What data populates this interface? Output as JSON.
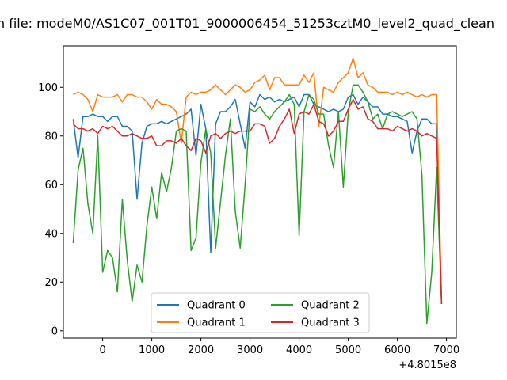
{
  "chart_data": {
    "type": "line",
    "title": "n file: modeM0/AS1C07_001T01_9000006454_51253cztM0_level2_quad_clean",
    "offset_label": "+4.8015e8",
    "xlabel": "",
    "ylabel": "",
    "xlim": [
      -800,
      7200
    ],
    "ylim": [
      -3,
      117
    ],
    "xticks": [
      0,
      1000,
      2000,
      3000,
      4000,
      5000,
      6000,
      7000
    ],
    "xtick_labels": [
      "0",
      "1000",
      "2000",
      "3000",
      "4000",
      "5000",
      "6000",
      "7000"
    ],
    "yticks": [
      0,
      20,
      40,
      60,
      80,
      100
    ],
    "ytick_labels": [
      "0",
      "20",
      "40",
      "60",
      "80",
      "100"
    ],
    "grid": false,
    "legend_position": "lower center",
    "legend_columns": 2,
    "x": [
      -600,
      -500,
      -400,
      -300,
      -200,
      -100,
      0,
      100,
      200,
      300,
      400,
      500,
      600,
      700,
      800,
      900,
      1000,
      1100,
      1200,
      1300,
      1400,
      1500,
      1600,
      1700,
      1800,
      1900,
      2000,
      2100,
      2200,
      2300,
      2400,
      2500,
      2600,
      2700,
      2800,
      2900,
      3000,
      3100,
      3200,
      3300,
      3400,
      3500,
      3600,
      3700,
      3800,
      3900,
      4000,
      4100,
      4200,
      4300,
      4400,
      4500,
      4600,
      4700,
      4800,
      4900,
      5000,
      5100,
      5200,
      5300,
      5400,
      5500,
      5600,
      5700,
      5800,
      5900,
      6000,
      6100,
      6200,
      6300,
      6400,
      6500,
      6600,
      6700,
      6800,
      6900
    ],
    "series": [
      {
        "name": "Quadrant 0",
        "color": "#1f77b4",
        "values": [
          87,
          71,
          88,
          88,
          89,
          88,
          88,
          86,
          88,
          88,
          84,
          84,
          82,
          54,
          77,
          84,
          85,
          85,
          86,
          85,
          86,
          87,
          88,
          89,
          91,
          72,
          93,
          83,
          32,
          85,
          90,
          90,
          92,
          95,
          85,
          75,
          94,
          92,
          97,
          95,
          96,
          94,
          95,
          94,
          95,
          96,
          92,
          97,
          97,
          93,
          92,
          91,
          90,
          91,
          90,
          91,
          96,
          97,
          93,
          96,
          94,
          92,
          92,
          89,
          89,
          88,
          88,
          87,
          86,
          73,
          82,
          87,
          87,
          85,
          85,
          11
        ]
      },
      {
        "name": "Quadrant 1",
        "color": "#ff7f0e",
        "values": [
          97,
          98,
          97,
          95,
          90,
          97,
          96,
          96,
          96,
          97,
          94,
          97,
          97,
          96,
          96,
          94,
          91,
          95,
          93,
          93,
          92,
          90,
          77,
          96,
          98,
          97,
          98,
          98,
          99,
          101,
          99,
          97,
          99,
          101,
          100,
          98,
          99,
          102,
          103,
          105,
          99,
          104,
          104,
          101,
          101,
          101,
          101,
          105,
          102,
          106,
          84,
          100,
          99,
          98,
          102,
          104,
          106,
          112,
          104,
          106,
          101,
          100,
          98,
          98,
          98,
          97,
          98,
          97,
          98,
          97,
          96,
          97,
          96,
          97,
          97,
          12
        ]
      },
      {
        "name": "Quadrant 2",
        "color": "#2ca02c",
        "values": [
          36,
          66,
          75,
          52,
          40,
          80,
          24,
          33,
          30,
          16,
          54,
          29,
          12,
          27,
          20,
          43,
          59,
          46,
          65,
          57,
          67,
          82,
          83,
          82,
          33,
          38,
          69,
          83,
          73,
          34,
          53,
          72,
          87,
          49,
          34,
          60,
          91,
          90,
          92,
          89,
          87,
          90,
          92,
          94,
          97,
          93,
          39,
          90,
          97,
          95,
          89,
          89,
          76,
          67,
          90,
          59,
          90,
          101,
          101,
          98,
          94,
          87,
          89,
          83,
          89,
          90,
          89,
          88,
          89,
          90,
          87,
          64,
          3,
          24,
          67,
          11
        ]
      },
      {
        "name": "Quadrant 3",
        "color": "#d62728",
        "values": [
          85,
          83,
          83,
          82,
          83,
          81,
          84,
          83,
          84,
          82,
          80,
          80,
          81,
          80,
          79,
          79,
          80,
          76,
          76,
          78,
          78,
          77,
          79,
          76,
          74,
          79,
          78,
          73,
          80,
          81,
          79,
          81,
          82,
          81,
          82,
          82,
          82,
          85,
          85,
          84,
          77,
          79,
          84,
          87,
          91,
          81,
          89,
          90,
          89,
          93,
          86,
          85,
          80,
          82,
          86,
          86,
          91,
          95,
          91,
          92,
          87,
          86,
          83,
          83,
          83,
          82,
          84,
          83,
          82,
          83,
          82,
          80,
          81,
          80,
          79,
          11
        ]
      }
    ]
  }
}
